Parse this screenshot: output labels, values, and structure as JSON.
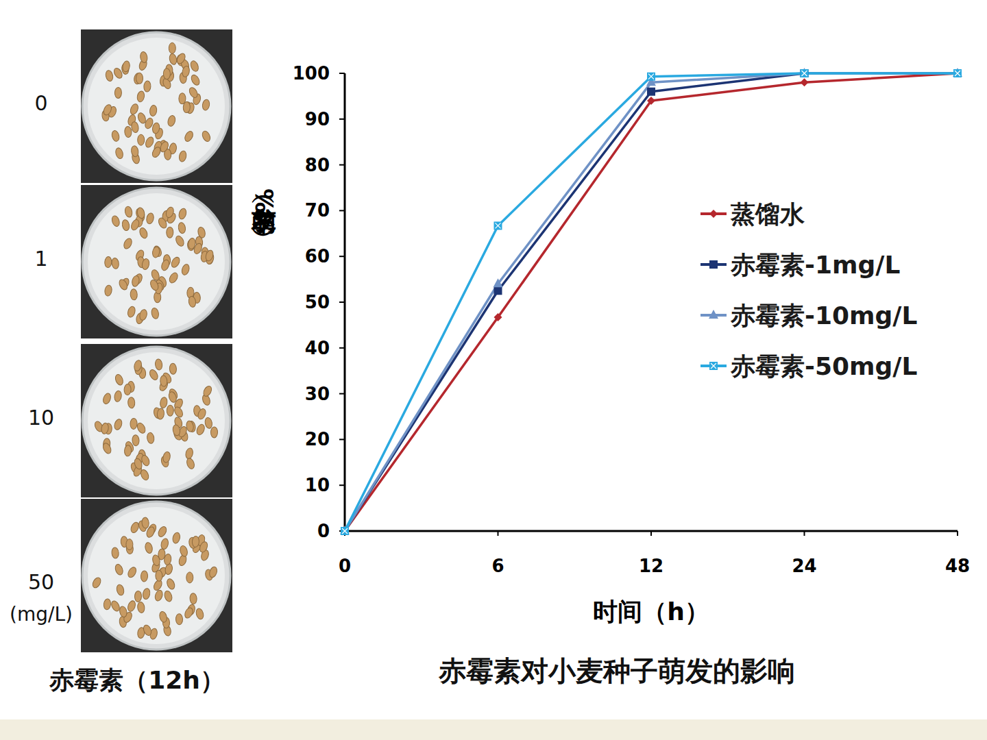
{
  "chart_data": {
    "type": "line",
    "title": "赤霉素对小麦种子萌发的影响",
    "x_label": "时间（h）",
    "y_label": "萌发率（%）",
    "categories": [
      "0",
      "6",
      "12",
      "24",
      "48"
    ],
    "ylim": [
      0,
      100
    ],
    "yticks": [
      0,
      10,
      20,
      30,
      40,
      50,
      60,
      70,
      80,
      90,
      100
    ],
    "grid": false,
    "legend": "upper right",
    "series": [
      {
        "name": "蒸馏水",
        "color": "#b5272d",
        "marker": "diamond",
        "values": [
          0,
          46.7,
          94,
          98,
          100
        ]
      },
      {
        "name": "赤霉素-1mg/L",
        "color": "#1c3473",
        "marker": "square",
        "values": [
          0,
          52.5,
          96,
          100,
          100
        ]
      },
      {
        "name": "赤霉素-10mg/L",
        "color": "#6f92c6",
        "marker": "triangle",
        "values": [
          0,
          54,
          98,
          100,
          100
        ]
      },
      {
        "name": "赤霉素-50mg/L",
        "color": "#2aa9e0",
        "marker": "cross",
        "values": [
          0,
          66.7,
          99.3,
          100,
          100
        ]
      }
    ]
  },
  "photo_panel": {
    "title": "赤霉素（12h）",
    "labels": [
      "0",
      "1",
      "10",
      "50"
    ],
    "unit": "(mg/L)"
  }
}
